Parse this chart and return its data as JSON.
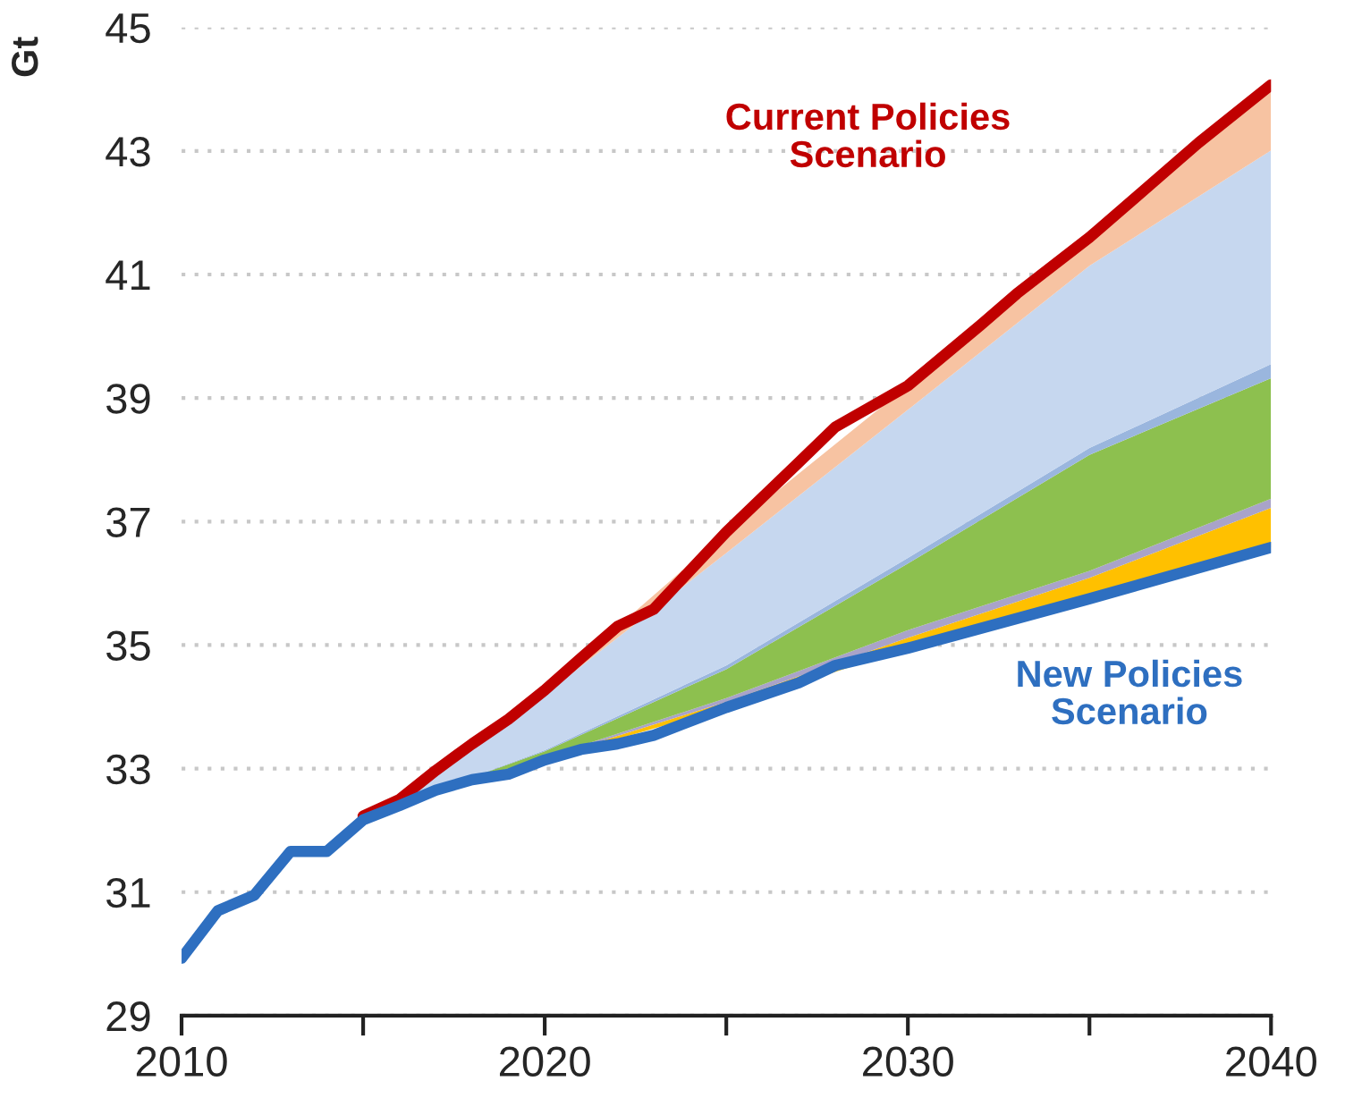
{
  "chart_data": {
    "type": "area",
    "ylabel": "Gt",
    "legend": false,
    "grid": "y",
    "xlim": [
      2010,
      2040
    ],
    "ylim": [
      29,
      45
    ],
    "xticks": [
      2010,
      {
        "value": 2015,
        "label": null
      },
      2020,
      {
        "value": 2025,
        "label": null
      },
      2030,
      {
        "value": 2035,
        "label": null
      },
      2040
    ],
    "yticks": [
      29,
      31,
      33,
      35,
      37,
      39,
      41,
      43,
      45
    ],
    "series": [
      {
        "name": "New Policies\nScenario",
        "type": "line",
        "color": "#2e6fc0",
        "x": [
          2010,
          2011,
          2012,
          2013,
          2014,
          2015,
          2016,
          2017,
          2018,
          2019,
          2020,
          2021,
          2022,
          2023,
          2025,
          2027,
          2028,
          2030,
          2035,
          2040
        ],
        "values": [
          29.93,
          30.7,
          30.95,
          31.66,
          31.66,
          32.17,
          32.4,
          32.65,
          32.82,
          32.91,
          33.14,
          33.31,
          33.4,
          33.54,
          33.99,
          34.39,
          34.67,
          34.95,
          35.75,
          36.58
        ]
      },
      {
        "name": "Current Policies\nScenario",
        "type": "line",
        "color": "#c00000",
        "x": [
          2015,
          2016,
          2017,
          2018,
          2019,
          2020,
          2021,
          2022,
          2023,
          2025,
          2027,
          2028,
          2030,
          2032,
          2033,
          2035,
          2037,
          2038,
          2040
        ],
        "values": [
          32.23,
          32.5,
          32.97,
          33.4,
          33.8,
          34.27,
          34.79,
          35.3,
          35.58,
          36.83,
          37.96,
          38.53,
          39.2,
          40.18,
          40.69,
          41.6,
          42.62,
          43.13,
          44.07
        ]
      },
      {
        "color": "#ffc000",
        "x": [
          2015,
          2017,
          2020,
          2025,
          2030,
          2035,
          2040
        ],
        "values": [
          32.17,
          32.65,
          33.16,
          34.08,
          35.12,
          36.09,
          37.22
        ]
      },
      {
        "color": "#a9a3c9",
        "x": [
          2015,
          2017,
          2020,
          2025,
          2030,
          2035,
          2040
        ],
        "values": [
          32.17,
          32.65,
          33.18,
          34.14,
          35.24,
          36.2,
          37.37
        ]
      },
      {
        "color": "#8dc04f",
        "x": [
          2015,
          2017,
          2020,
          2025,
          2030,
          2035,
          2040
        ],
        "values": [
          32.17,
          32.65,
          33.28,
          34.61,
          36.32,
          38.08,
          39.32
        ]
      },
      {
        "color": "#9ab6de",
        "x": [
          2015,
          2017,
          2020,
          2025,
          2030,
          2035,
          2040
        ],
        "values": [
          32.17,
          32.65,
          33.3,
          34.67,
          36.41,
          38.19,
          39.55
        ]
      },
      {
        "color": "#c6d7ef",
        "x": [
          2015,
          2017,
          2020,
          2025,
          2030,
          2035,
          2040
        ],
        "values": [
          32.17,
          32.95,
          34.2,
          36.49,
          38.81,
          41.14,
          43.01
        ]
      },
      {
        "color": "#f7c3a2",
        "x": [
          2015,
          2017,
          2020,
          2025,
          2030,
          2035,
          2040
        ],
        "values": [
          32.23,
          32.97,
          34.27,
          36.83,
          39.2,
          41.6,
          44.07
        ]
      }
    ]
  }
}
